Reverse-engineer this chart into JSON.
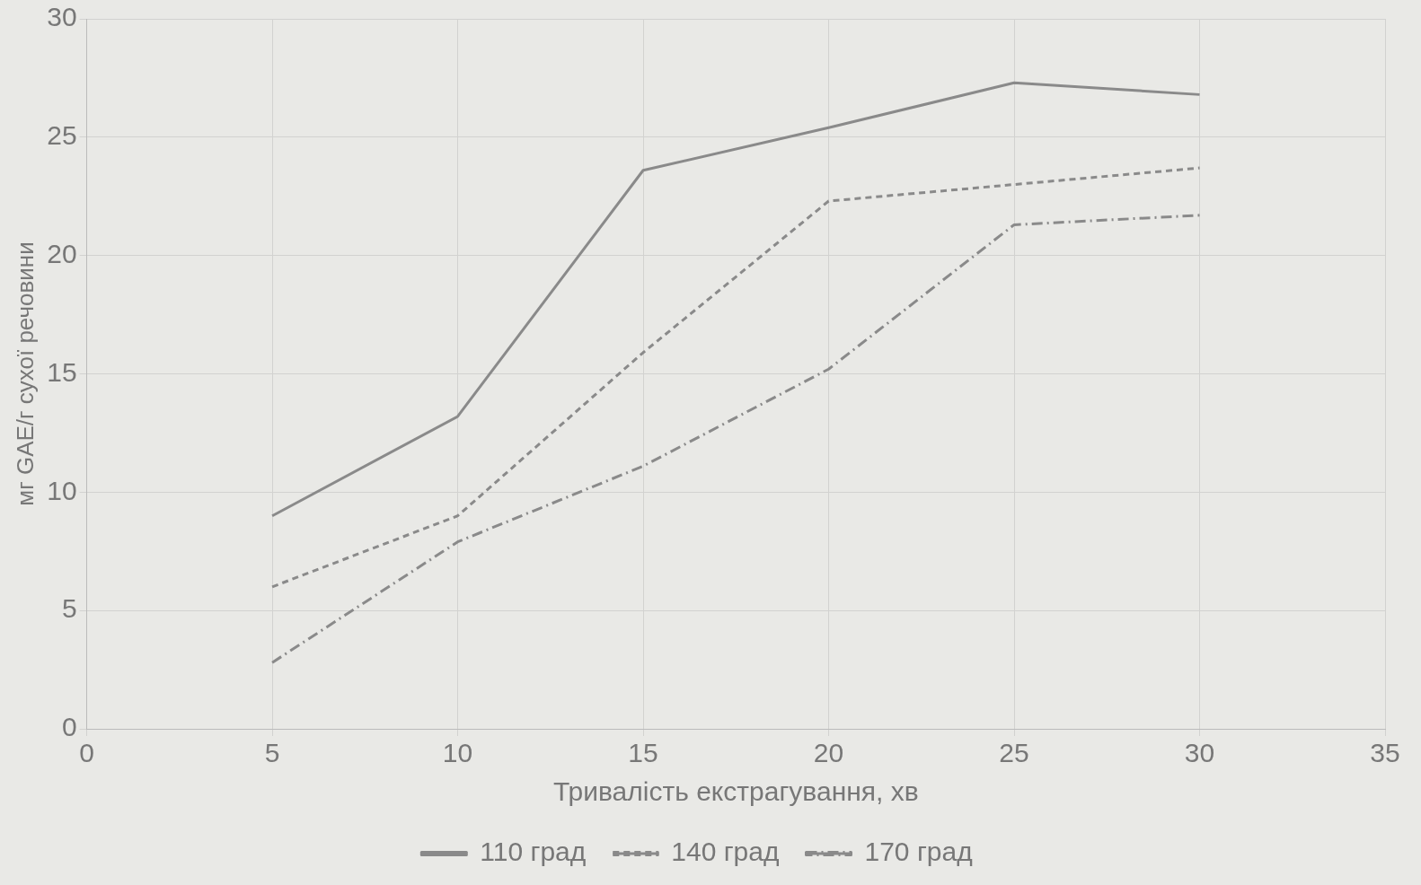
{
  "chart_data": {
    "type": "line",
    "xlabel": "Тривалість екстрагування, хв",
    "ylabel": "мг GAE/г сухої речовини",
    "x": [
      5,
      10,
      15,
      20,
      25,
      30
    ],
    "series": [
      {
        "name": "110 град",
        "color": "#8a8a8a",
        "line_style": "solid",
        "values": [
          9.0,
          13.2,
          23.6,
          25.4,
          27.3,
          26.8
        ]
      },
      {
        "name": "140 град",
        "color": "#8a8a8a",
        "line_style": "dotted",
        "values": [
          6.0,
          9.0,
          15.9,
          22.3,
          23.0,
          23.7
        ]
      },
      {
        "name": "170 град",
        "color": "#8a8a8a",
        "line_style": "dashed",
        "values": [
          2.8,
          7.9,
          11.1,
          15.2,
          21.3,
          21.7
        ]
      }
    ],
    "xlim": [
      0,
      35
    ],
    "xticks": [
      0,
      5,
      10,
      15,
      20,
      25,
      30,
      35
    ],
    "ylim": [
      0,
      30
    ],
    "yticks": [
      0,
      5,
      10,
      15,
      20,
      25,
      30
    ],
    "grid": true,
    "legend": "bottom",
    "marker": "none"
  }
}
